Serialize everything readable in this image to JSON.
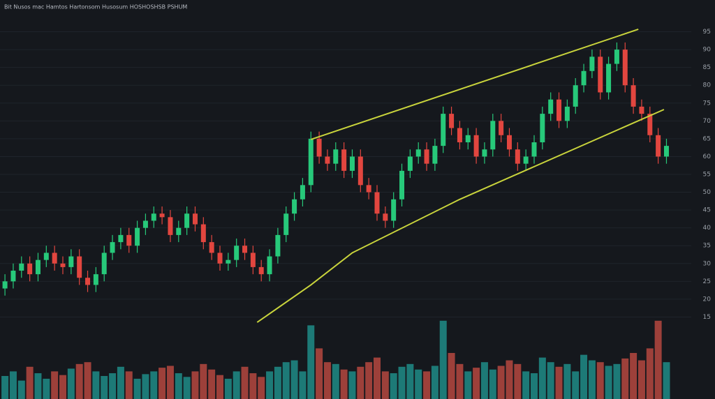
{
  "chart_data": {
    "type": "candlestick",
    "title": "Bit Nusos mac Hamtos Hartonsom Husosum HOSHOSHSB PSHUM",
    "x": [
      0,
      1,
      2,
      3,
      4,
      5,
      6,
      7,
      8,
      9,
      10,
      11,
      12,
      13,
      14,
      15,
      16,
      17,
      18,
      19,
      20,
      21,
      22,
      23,
      24,
      25,
      26,
      27,
      28,
      29,
      30,
      31,
      32,
      33,
      34,
      35,
      36,
      37,
      38,
      39,
      40,
      41,
      42,
      43,
      44,
      45,
      46,
      47,
      48,
      49,
      50,
      51,
      52,
      53,
      54,
      55,
      56,
      57,
      58,
      59,
      60,
      61,
      62,
      63,
      64,
      65,
      66,
      67,
      68,
      69,
      70,
      71,
      72,
      73,
      74,
      75,
      76,
      77,
      78,
      79,
      80
    ],
    "open": [
      23,
      25,
      28,
      30,
      27,
      31,
      33,
      30,
      29,
      32,
      26,
      24,
      27,
      33,
      36,
      38,
      35,
      40,
      42,
      44,
      43,
      38,
      40,
      44,
      41,
      36,
      33,
      30,
      31,
      35,
      33,
      29,
      27,
      32,
      38,
      44,
      48,
      52,
      65,
      60,
      58,
      62,
      56,
      60,
      52,
      50,
      44,
      42,
      48,
      56,
      60,
      62,
      58,
      63,
      72,
      68,
      64,
      66,
      60,
      62,
      70,
      66,
      62,
      58,
      60,
      64,
      72,
      76,
      70,
      74,
      80,
      84,
      88,
      78,
      86,
      90,
      80,
      74,
      72,
      66,
      60
    ],
    "high": [
      27,
      30,
      32,
      32,
      33,
      35,
      35,
      32,
      34,
      34,
      28,
      29,
      35,
      38,
      40,
      40,
      42,
      44,
      46,
      46,
      45,
      42,
      46,
      46,
      43,
      38,
      35,
      33,
      37,
      37,
      35,
      31,
      34,
      40,
      46,
      50,
      54,
      67,
      67,
      62,
      64,
      64,
      62,
      62,
      54,
      52,
      46,
      50,
      58,
      62,
      64,
      64,
      65,
      74,
      74,
      70,
      68,
      68,
      64,
      72,
      72,
      68,
      64,
      62,
      66,
      74,
      78,
      78,
      76,
      82,
      86,
      90,
      90,
      88,
      92,
      92,
      82,
      76,
      74,
      68,
      65
    ],
    "low": [
      21,
      23,
      26,
      25,
      25,
      29,
      28,
      27,
      27,
      24,
      22,
      22,
      25,
      31,
      34,
      33,
      33,
      38,
      40,
      41,
      36,
      36,
      38,
      39,
      34,
      31,
      28,
      28,
      29,
      31,
      27,
      25,
      25,
      30,
      36,
      42,
      46,
      50,
      58,
      56,
      56,
      54,
      54,
      50,
      48,
      42,
      40,
      40,
      46,
      54,
      58,
      56,
      56,
      61,
      66,
      62,
      62,
      58,
      58,
      60,
      64,
      60,
      56,
      56,
      58,
      62,
      70,
      68,
      68,
      72,
      78,
      82,
      76,
      76,
      84,
      78,
      72,
      70,
      64,
      58,
      58
    ],
    "close": [
      25,
      28,
      30,
      27,
      31,
      33,
      30,
      29,
      32,
      26,
      24,
      27,
      33,
      36,
      38,
      35,
      40,
      42,
      44,
      43,
      38,
      40,
      44,
      41,
      36,
      33,
      30,
      31,
      35,
      33,
      29,
      27,
      32,
      38,
      44,
      48,
      52,
      65,
      60,
      58,
      62,
      56,
      60,
      52,
      50,
      44,
      42,
      48,
      56,
      60,
      62,
      58,
      63,
      72,
      68,
      64,
      66,
      60,
      62,
      70,
      66,
      62,
      58,
      60,
      64,
      72,
      76,
      70,
      74,
      80,
      84,
      88,
      78,
      86,
      90,
      80,
      74,
      72,
      66,
      60,
      63
    ],
    "volume": [
      25,
      30,
      20,
      35,
      28,
      22,
      30,
      26,
      33,
      38,
      40,
      30,
      25,
      28,
      35,
      30,
      22,
      27,
      30,
      34,
      36,
      28,
      24,
      30,
      38,
      32,
      26,
      22,
      30,
      35,
      28,
      24,
      30,
      35,
      40,
      42,
      30,
      80,
      55,
      40,
      38,
      32,
      30,
      35,
      40,
      45,
      30,
      28,
      35,
      38,
      32,
      30,
      36,
      85,
      50,
      38,
      30,
      34,
      40,
      32,
      36,
      42,
      38,
      30,
      28,
      45,
      40,
      35,
      38,
      30,
      48,
      42,
      40,
      36,
      38,
      44,
      50,
      42,
      55,
      85,
      40
    ],
    "up_color": "#27c97a",
    "down_color": "#e2463f",
    "volume_up_color": "#1e8c87",
    "volume_down_color": "#b5483f",
    "xlim": [
      -0.6,
      83
    ],
    "ylim": [
      10,
      100
    ],
    "yticks": [
      15,
      20,
      25,
      30,
      35,
      40,
      45,
      50,
      55,
      60,
      65,
      70,
      75,
      80,
      85,
      90,
      95
    ],
    "volume_lim": [
      0,
      100
    ],
    "grid": true,
    "trendlines": [
      {
        "color": "#c9d43c",
        "x": [
          37,
          76.6
        ],
        "y": [
          64.8,
          95.7
        ]
      },
      {
        "color": "#c9d43c",
        "x": [
          30.5,
          37,
          42,
          55,
          79.7
        ],
        "y": [
          13.5,
          24,
          33,
          48,
          73.2
        ]
      }
    ]
  }
}
